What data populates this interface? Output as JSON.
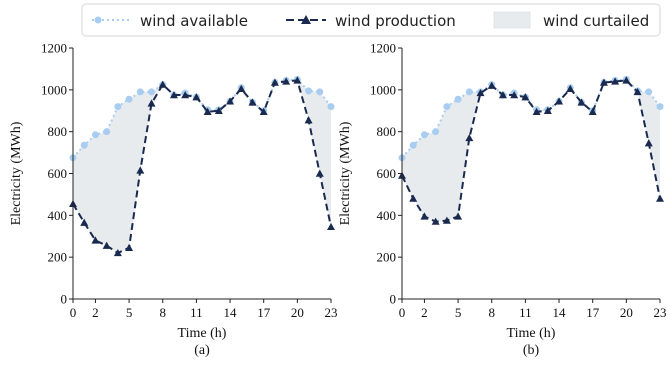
{
  "legend": {
    "items": [
      {
        "label": "wind available",
        "color": "#a9cdf0",
        "style": "dotted-circle"
      },
      {
        "label": "wind production",
        "color": "#1a2a4f",
        "style": "dashed-triangle"
      },
      {
        "label": "wind curtailed",
        "color": "#e8ebee",
        "style": "area"
      }
    ]
  },
  "chart_data": [
    {
      "type": "line",
      "caption": "(a)",
      "xlabel": "Time (h)",
      "ylabel": "Electricity (MWh)",
      "xlim": [
        0,
        23
      ],
      "ylim": [
        0,
        1200
      ],
      "xticks": [
        0,
        2,
        5,
        8,
        11,
        14,
        17,
        20,
        23
      ],
      "yticks": [
        0,
        200,
        400,
        600,
        800,
        1000,
        1200
      ],
      "x": [
        0,
        1,
        2,
        3,
        4,
        5,
        6,
        7,
        8,
        9,
        10,
        11,
        12,
        13,
        14,
        15,
        16,
        17,
        18,
        19,
        20,
        21,
        22,
        23
      ],
      "series": [
        {
          "name": "wind available",
          "values": [
            675,
            735,
            785,
            800,
            920,
            955,
            990,
            990,
            1025,
            975,
            985,
            965,
            905,
            905,
            945,
            1010,
            940,
            900,
            1035,
            1045,
            1050,
            995,
            990,
            920
          ]
        },
        {
          "name": "wind production",
          "values": [
            455,
            365,
            280,
            255,
            220,
            245,
            615,
            935,
            1025,
            975,
            975,
            965,
            895,
            900,
            945,
            1005,
            940,
            895,
            1035,
            1040,
            1045,
            855,
            600,
            345
          ]
        }
      ],
      "fill_between": "wind curtailed",
      "grid": false
    },
    {
      "type": "line",
      "caption": "(b)",
      "xlabel": "Time (h)",
      "ylabel": "Electricity (MWh)",
      "xlim": [
        0,
        23
      ],
      "ylim": [
        0,
        1200
      ],
      "xticks": [
        0,
        2,
        5,
        8,
        11,
        14,
        17,
        20,
        23
      ],
      "yticks": [
        0,
        200,
        400,
        600,
        800,
        1000,
        1200
      ],
      "x": [
        0,
        1,
        2,
        3,
        4,
        5,
        6,
        7,
        8,
        9,
        10,
        11,
        12,
        13,
        14,
        15,
        16,
        17,
        18,
        19,
        20,
        21,
        22,
        23
      ],
      "series": [
        {
          "name": "wind available",
          "values": [
            675,
            735,
            785,
            800,
            920,
            955,
            990,
            990,
            1025,
            975,
            985,
            965,
            905,
            905,
            945,
            1010,
            940,
            900,
            1035,
            1045,
            1050,
            995,
            990,
            920
          ]
        },
        {
          "name": "wind production",
          "values": [
            590,
            480,
            395,
            370,
            375,
            395,
            770,
            985,
            1020,
            975,
            975,
            965,
            895,
            900,
            945,
            1005,
            940,
            895,
            1035,
            1040,
            1045,
            990,
            745,
            480
          ]
        }
      ],
      "fill_between": "wind curtailed",
      "grid": false
    }
  ]
}
